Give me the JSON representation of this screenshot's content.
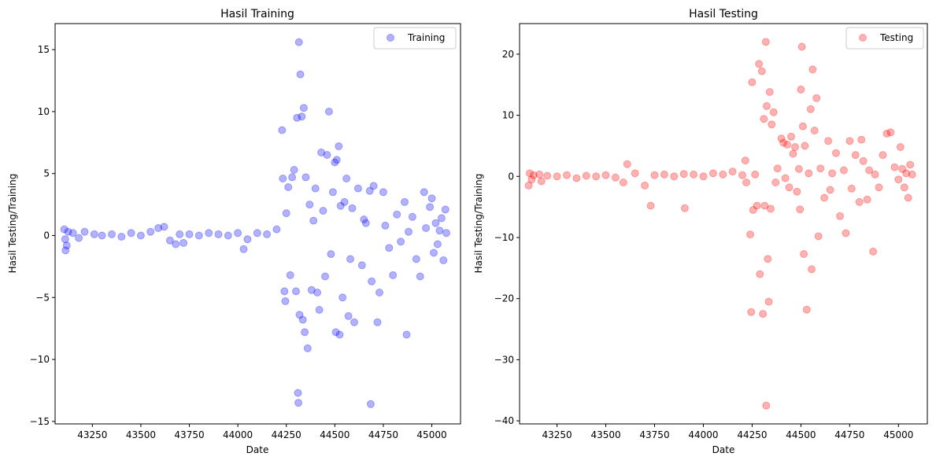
{
  "chart_data": [
    {
      "type": "scatter",
      "title": "Hasil Training",
      "xlabel": "Date",
      "ylabel": "Hasil Testing/Training",
      "xlim": [
        43058,
        45148
      ],
      "ylim": [
        -15.2,
        17.1
      ],
      "xticks": [
        43250,
        43500,
        43750,
        44000,
        44250,
        44500,
        44750,
        45000
      ],
      "xtick_labels": [
        "43250",
        "43500",
        "43750",
        "44000",
        "44250",
        "44500",
        "44750",
        "45000"
      ],
      "yticks": [
        -15,
        -10,
        -5,
        0,
        5,
        10,
        15
      ],
      "ytick_labels": [
        "−15",
        "−10",
        "−5",
        "0",
        "5",
        "10",
        "15"
      ],
      "legend": {
        "location": "top-right"
      },
      "grid": false,
      "series": [
        {
          "name": "Training",
          "color": "#0000ff",
          "alpha": 0.3,
          "points": [
            [
              43105,
              0.5
            ],
            [
              43110,
              -0.3
            ],
            [
              43112,
              -1.2
            ],
            [
              43118,
              -0.8
            ],
            [
              43125,
              0.3
            ],
            [
              43150,
              0.2
            ],
            [
              43180,
              -0.2
            ],
            [
              43210,
              0.3
            ],
            [
              43260,
              0.1
            ],
            [
              43300,
              0.0
            ],
            [
              43350,
              0.1
            ],
            [
              43400,
              -0.1
            ],
            [
              43450,
              0.2
            ],
            [
              43500,
              0.0
            ],
            [
              43550,
              0.3
            ],
            [
              43590,
              0.6
            ],
            [
              43620,
              0.7
            ],
            [
              43650,
              -0.4
            ],
            [
              43680,
              -0.7
            ],
            [
              43700,
              0.1
            ],
            [
              43720,
              -0.6
            ],
            [
              43750,
              0.1
            ],
            [
              43800,
              0.0
            ],
            [
              43850,
              0.2
            ],
            [
              43900,
              0.1
            ],
            [
              43950,
              0.0
            ],
            [
              44000,
              0.2
            ],
            [
              44030,
              -1.1
            ],
            [
              44050,
              -0.3
            ],
            [
              44100,
              0.2
            ],
            [
              44150,
              0.1
            ],
            [
              44200,
              0.5
            ],
            [
              44228,
              8.5
            ],
            [
              44232,
              4.6
            ],
            [
              44240,
              -4.5
            ],
            [
              44245,
              -5.3
            ],
            [
              44250,
              1.8
            ],
            [
              44260,
              3.9
            ],
            [
              44270,
              -3.2
            ],
            [
              44280,
              4.7
            ],
            [
              44290,
              5.3
            ],
            [
              44300,
              -4.5
            ],
            [
              44305,
              9.5
            ],
            [
              44310,
              -12.7
            ],
            [
              44312,
              -13.5
            ],
            [
              44315,
              15.6
            ],
            [
              44318,
              -6.4
            ],
            [
              44322,
              13.0
            ],
            [
              44330,
              9.6
            ],
            [
              44335,
              -6.8
            ],
            [
              44340,
              10.3
            ],
            [
              44345,
              -7.8
            ],
            [
              44350,
              4.7
            ],
            [
              44360,
              -9.1
            ],
            [
              44370,
              2.5
            ],
            [
              44380,
              -4.4
            ],
            [
              44390,
              1.2
            ],
            [
              44400,
              3.8
            ],
            [
              44410,
              -4.6
            ],
            [
              44420,
              -6.0
            ],
            [
              44430,
              6.7
            ],
            [
              44440,
              2.0
            ],
            [
              44450,
              -3.3
            ],
            [
              44460,
              6.5
            ],
            [
              44470,
              10.0
            ],
            [
              44480,
              -1.5
            ],
            [
              44490,
              3.5
            ],
            [
              44500,
              5.9
            ],
            [
              44505,
              -7.8
            ],
            [
              44510,
              6.1
            ],
            [
              44520,
              7.2
            ],
            [
              44525,
              -8.0
            ],
            [
              44530,
              2.4
            ],
            [
              44540,
              -5.0
            ],
            [
              44550,
              2.7
            ],
            [
              44560,
              4.6
            ],
            [
              44570,
              -6.5
            ],
            [
              44580,
              -1.9
            ],
            [
              44590,
              2.2
            ],
            [
              44600,
              -7.0
            ],
            [
              44620,
              3.8
            ],
            [
              44640,
              -2.4
            ],
            [
              44650,
              1.3
            ],
            [
              44660,
              1.0
            ],
            [
              44680,
              3.6
            ],
            [
              44685,
              -13.6
            ],
            [
              44690,
              -3.7
            ],
            [
              44700,
              4.0
            ],
            [
              44720,
              -7.0
            ],
            [
              44730,
              -4.6
            ],
            [
              44750,
              3.5
            ],
            [
              44760,
              0.8
            ],
            [
              44780,
              -1.0
            ],
            [
              44800,
              -3.2
            ],
            [
              44820,
              1.7
            ],
            [
              44840,
              -0.5
            ],
            [
              44860,
              2.7
            ],
            [
              44870,
              -8.0
            ],
            [
              44880,
              0.3
            ],
            [
              44900,
              1.5
            ],
            [
              44920,
              -1.9
            ],
            [
              44940,
              -3.3
            ],
            [
              44960,
              3.5
            ],
            [
              44970,
              0.6
            ],
            [
              44990,
              2.3
            ],
            [
              45000,
              3.0
            ],
            [
              45010,
              -1.4
            ],
            [
              45020,
              1.0
            ],
            [
              45030,
              -0.7
            ],
            [
              45040,
              0.4
            ],
            [
              45050,
              1.4
            ],
            [
              45060,
              -2.0
            ],
            [
              45070,
              2.1
            ],
            [
              45075,
              0.2
            ]
          ]
        }
      ]
    },
    {
      "type": "scatter",
      "title": "Hasil Testing",
      "xlabel": "Date",
      "ylabel": "Hasil Testing/Training",
      "xlim": [
        43058,
        45148
      ],
      "ylim": [
        -40.5,
        25.0
      ],
      "xticks": [
        43250,
        43500,
        43750,
        44000,
        44250,
        44500,
        44750,
        45000
      ],
      "xtick_labels": [
        "43250",
        "43500",
        "43750",
        "44000",
        "44250",
        "44500",
        "44750",
        "45000"
      ],
      "yticks": [
        -40,
        -30,
        -20,
        -10,
        0,
        10,
        20
      ],
      "ytick_labels": [
        "−40",
        "−30",
        "−20",
        "−10",
        "0",
        "10",
        "20"
      ],
      "legend": {
        "location": "top-right"
      },
      "grid": false,
      "series": [
        {
          "name": "Testing",
          "color": "#ff0000",
          "alpha": 0.3,
          "points": [
            [
              43105,
              -1.5
            ],
            [
              43110,
              0.5
            ],
            [
              43120,
              -0.5
            ],
            [
              43130,
              0.2
            ],
            [
              43160,
              0.3
            ],
            [
              43170,
              -0.8
            ],
            [
              43200,
              0.1
            ],
            [
              43250,
              0.0
            ],
            [
              43300,
              0.2
            ],
            [
              43350,
              -0.3
            ],
            [
              43400,
              0.1
            ],
            [
              43450,
              0.0
            ],
            [
              43500,
              0.2
            ],
            [
              43550,
              -0.2
            ],
            [
              43590,
              -1.0
            ],
            [
              43610,
              2.0
            ],
            [
              43650,
              0.5
            ],
            [
              43700,
              -1.5
            ],
            [
              43730,
              -4.8
            ],
            [
              43750,
              0.2
            ],
            [
              43800,
              0.3
            ],
            [
              43850,
              0.0
            ],
            [
              43900,
              0.4
            ],
            [
              43905,
              -5.2
            ],
            [
              43950,
              0.3
            ],
            [
              44000,
              0.0
            ],
            [
              44050,
              0.5
            ],
            [
              44100,
              0.3
            ],
            [
              44150,
              0.8
            ],
            [
              44200,
              0.2
            ],
            [
              44215,
              2.6
            ],
            [
              44220,
              -1.0
            ],
            [
              44240,
              -9.5
            ],
            [
              44245,
              -22.2
            ],
            [
              44250,
              15.4
            ],
            [
              44255,
              -5.5
            ],
            [
              44265,
              0.3
            ],
            [
              44275,
              -4.8
            ],
            [
              44285,
              18.4
            ],
            [
              44290,
              -16.0
            ],
            [
              44300,
              17.2
            ],
            [
              44305,
              -22.5
            ],
            [
              44310,
              9.4
            ],
            [
              44315,
              -4.8
            ],
            [
              44320,
              22.0
            ],
            [
              44322,
              -37.5
            ],
            [
              44325,
              11.5
            ],
            [
              44330,
              -13.5
            ],
            [
              44335,
              -20.5
            ],
            [
              44340,
              13.8
            ],
            [
              44345,
              -5.3
            ],
            [
              44350,
              8.5
            ],
            [
              44360,
              10.5
            ],
            [
              44370,
              -1.0
            ],
            [
              44380,
              1.3
            ],
            [
              44400,
              6.2
            ],
            [
              44410,
              5.5
            ],
            [
              44420,
              -0.3
            ],
            [
              44430,
              5.2
            ],
            [
              44440,
              -1.8
            ],
            [
              44450,
              6.5
            ],
            [
              44460,
              3.7
            ],
            [
              44470,
              4.8
            ],
            [
              44480,
              -2.5
            ],
            [
              44490,
              1.2
            ],
            [
              44495,
              -5.4
            ],
            [
              44500,
              14.2
            ],
            [
              44505,
              21.2
            ],
            [
              44510,
              8.2
            ],
            [
              44515,
              -12.7
            ],
            [
              44520,
              5.0
            ],
            [
              44530,
              -21.8
            ],
            [
              44540,
              0.5
            ],
            [
              44550,
              11.0
            ],
            [
              44555,
              -15.2
            ],
            [
              44560,
              17.5
            ],
            [
              44570,
              7.5
            ],
            [
              44580,
              12.8
            ],
            [
              44590,
              -9.8
            ],
            [
              44600,
              1.3
            ],
            [
              44620,
              -3.5
            ],
            [
              44640,
              5.8
            ],
            [
              44650,
              -2.2
            ],
            [
              44660,
              0.5
            ],
            [
              44680,
              3.8
            ],
            [
              44700,
              -6.5
            ],
            [
              44720,
              1.0
            ],
            [
              44730,
              -9.3
            ],
            [
              44750,
              5.8
            ],
            [
              44760,
              -2.0
            ],
            [
              44780,
              3.5
            ],
            [
              44800,
              -4.2
            ],
            [
              44810,
              6.0
            ],
            [
              44820,
              2.5
            ],
            [
              44840,
              -3.8
            ],
            [
              44850,
              1.0
            ],
            [
              44870,
              -12.3
            ],
            [
              44880,
              0.3
            ],
            [
              44900,
              -1.8
            ],
            [
              44920,
              3.5
            ],
            [
              44940,
              7.0
            ],
            [
              44960,
              7.2
            ],
            [
              44980,
              1.5
            ],
            [
              45000,
              -0.5
            ],
            [
              45010,
              4.8
            ],
            [
              45020,
              1.2
            ],
            [
              45030,
              -1.8
            ],
            [
              45040,
              0.5
            ],
            [
              45050,
              -3.5
            ],
            [
              45060,
              1.9
            ],
            [
              45070,
              0.3
            ]
          ]
        }
      ]
    }
  ]
}
